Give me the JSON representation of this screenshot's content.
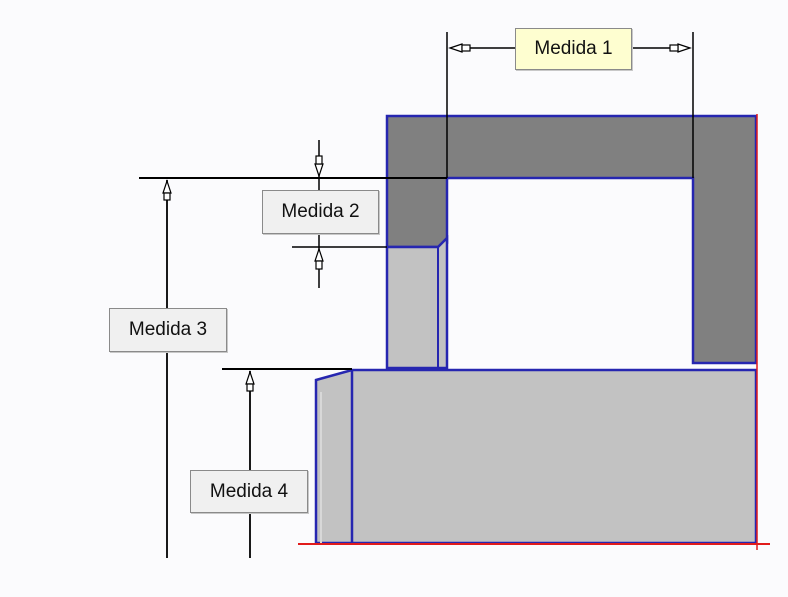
{
  "labels": {
    "medida_1": "Medida 1",
    "medida_2": "Medida 2",
    "medida_3": "Medida 3",
    "medida_4": "Medida 4"
  },
  "colors": {
    "background": "#fbfbfd",
    "part_outline": "#2626b0",
    "edge_red": "#e11b1b",
    "dark_section": "#808080",
    "light_section": "#c0c0c0",
    "dimension_line": "#000000",
    "highlight_label_bg": "#fefed0",
    "label_bg": "#f0f0f0"
  }
}
